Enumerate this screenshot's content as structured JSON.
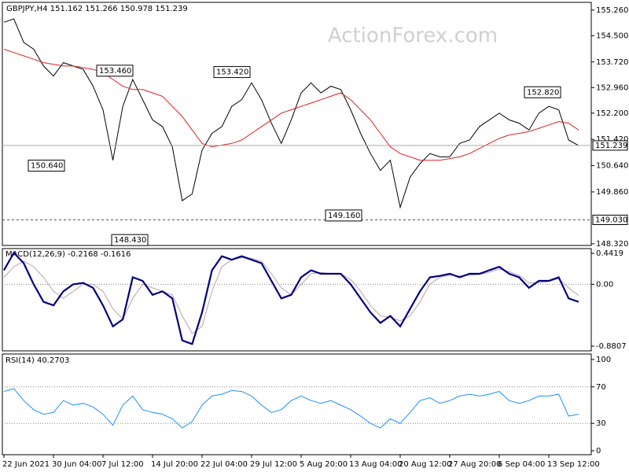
{
  "chart_data": [
    {
      "type": "line",
      "title": "GBPJPY,H4  151.162 151.266 150.978 151.239",
      "watermark": "ActionForex.com",
      "ylim": [
        148.27,
        155.49
      ],
      "yticks": [
        {
          "value": 155.26,
          "label": "155.260"
        },
        {
          "value": 154.5,
          "label": "154.500"
        },
        {
          "value": 153.72,
          "label": "153.720"
        },
        {
          "value": 152.96,
          "label": "152.960"
        },
        {
          "value": 152.2,
          "label": "152.200"
        },
        {
          "value": 151.42,
          "label": "151.420"
        },
        {
          "value": 150.64,
          "label": "150.640"
        },
        {
          "value": 149.86,
          "label": "149.860"
        },
        {
          "value": 148.32,
          "label": "148.320"
        }
      ],
      "series": [
        {
          "name": "Price",
          "color": "#000000",
          "width": 1,
          "values": [
            154.9,
            155.0,
            154.3,
            154.1,
            153.6,
            153.3,
            153.7,
            153.6,
            153.5,
            153.0,
            152.3,
            150.8,
            152.4,
            153.2,
            152.6,
            152.0,
            151.8,
            151.2,
            149.6,
            149.8,
            151.1,
            151.6,
            151.8,
            152.4,
            152.6,
            153.1,
            152.6,
            151.9,
            151.3,
            152.0,
            152.8,
            153.1,
            152.8,
            153.0,
            152.9,
            152.3,
            151.6,
            151.0,
            150.5,
            150.8,
            149.4,
            150.3,
            150.7,
            151.0,
            150.9,
            150.9,
            151.3,
            151.4,
            151.8,
            152.0,
            152.2,
            152.0,
            151.9,
            151.7,
            152.2,
            152.4,
            152.3,
            151.4,
            151.239
          ]
        },
        {
          "name": "MA",
          "color": "#e02020",
          "width": 1,
          "values": [
            154.1,
            154.0,
            153.9,
            153.8,
            153.7,
            153.65,
            153.6,
            153.6,
            153.55,
            153.5,
            153.4,
            153.2,
            153.0,
            152.9,
            152.9,
            152.8,
            152.7,
            152.4,
            152.1,
            151.7,
            151.3,
            151.2,
            151.25,
            151.3,
            151.4,
            151.6,
            151.8,
            152.0,
            152.2,
            152.3,
            152.4,
            152.5,
            152.6,
            152.7,
            152.8,
            152.6,
            152.3,
            152.0,
            151.6,
            151.2,
            151.0,
            150.9,
            150.8,
            150.8,
            150.8,
            150.85,
            150.9,
            151.0,
            151.15,
            151.3,
            151.45,
            151.55,
            151.6,
            151.65,
            151.75,
            151.85,
            151.95,
            151.9,
            151.7
          ]
        }
      ],
      "annotations": [
        {
          "value": 153.46,
          "label": "153.460"
        },
        {
          "value": 150.64,
          "label": "150.640"
        },
        {
          "value": 153.42,
          "label": "153.420"
        },
        {
          "value": 148.43,
          "label": "148.430"
        },
        {
          "value": 149.16,
          "label": "149.160"
        },
        {
          "value": 152.82,
          "label": "152.820"
        }
      ],
      "price_levels": [
        {
          "value": 149.03,
          "label": "149.030",
          "dashed": true
        },
        {
          "value": 151.239,
          "label": "151.239",
          "dashed": false
        }
      ]
    },
    {
      "type": "line",
      "title": "MACD(12,26,9) -0.2168 -0.1616",
      "ylim": [
        -0.948,
        0.509
      ],
      "yticks": [
        0.4419,
        {
          "value": 0,
          "label": "0.00"
        },
        -0.8807
      ],
      "levels": [
        0
      ],
      "series": [
        {
          "name": "Signal",
          "color": "#b8a4ac",
          "width": 1,
          "values": [
            0.1,
            0.25,
            0.33,
            0.25,
            0.1,
            -0.1,
            -0.2,
            -0.1,
            0.0,
            0.0,
            -0.1,
            -0.35,
            -0.5,
            -0.2,
            0.0,
            -0.05,
            -0.1,
            -0.15,
            -0.45,
            -0.7,
            -0.6,
            -0.1,
            0.25,
            0.35,
            0.38,
            0.37,
            0.33,
            0.15,
            -0.05,
            -0.15,
            0.0,
            0.15,
            0.17,
            0.15,
            0.15,
            0.07,
            -0.1,
            -0.3,
            -0.45,
            -0.47,
            -0.52,
            -0.45,
            -0.25,
            0.0,
            0.1,
            0.13,
            0.12,
            0.13,
            0.14,
            0.17,
            0.22,
            0.18,
            0.13,
            0.02,
            0.02,
            0.04,
            0.08,
            -0.05,
            -0.16
          ]
        },
        {
          "name": "MACD",
          "color": "#000080",
          "width": 2.2,
          "values": [
            0.2,
            0.45,
            0.3,
            0.0,
            -0.25,
            -0.3,
            -0.1,
            0.0,
            0.02,
            -0.05,
            -0.3,
            -0.6,
            -0.5,
            0.1,
            0.05,
            -0.15,
            -0.1,
            -0.2,
            -0.8,
            -0.85,
            -0.4,
            0.2,
            0.4,
            0.35,
            0.4,
            0.35,
            0.3,
            0.05,
            -0.2,
            -0.15,
            0.1,
            0.2,
            0.15,
            0.15,
            0.15,
            0.0,
            -0.2,
            -0.4,
            -0.55,
            -0.45,
            -0.6,
            -0.35,
            -0.1,
            0.1,
            0.12,
            0.15,
            0.1,
            0.15,
            0.15,
            0.2,
            0.25,
            0.15,
            0.1,
            -0.05,
            0.05,
            0.05,
            0.1,
            -0.2,
            -0.25
          ]
        }
      ]
    },
    {
      "type": "line",
      "title": "RSI(14) 40.2703",
      "ylim": [
        -4.3,
        106
      ],
      "yticks": [
        100,
        70,
        30,
        0
      ],
      "levels": [
        70,
        30
      ],
      "series": [
        {
          "name": "RSI",
          "color": "#1e90ff",
          "width": 1,
          "values": [
            65,
            68,
            55,
            45,
            40,
            42,
            55,
            50,
            52,
            48,
            40,
            28,
            50,
            60,
            45,
            42,
            40,
            35,
            25,
            32,
            50,
            60,
            62,
            66,
            65,
            60,
            50,
            42,
            45,
            55,
            60,
            55,
            52,
            55,
            50,
            45,
            38,
            30,
            25,
            35,
            30,
            42,
            55,
            58,
            52,
            55,
            60,
            62,
            60,
            62,
            65,
            55,
            52,
            55,
            60,
            60,
            62,
            38,
            40
          ]
        }
      ],
      "categories": [
        "22 Jun 2021",
        null,
        null,
        null,
        null,
        "30 Jun 04:00",
        null,
        null,
        null,
        null,
        "7 Jul 12:00",
        null,
        null,
        null,
        null,
        "14 Jul 20:00",
        null,
        null,
        null,
        null,
        "22 Jul 04:00",
        null,
        null,
        null,
        null,
        "29 Jul 12:00",
        null,
        null,
        null,
        null,
        "5 Aug 20:00",
        null,
        null,
        null,
        null,
        "13 Aug 04:00",
        null,
        null,
        null,
        null,
        "20 Aug 12:00",
        null,
        null,
        null,
        null,
        "27 Aug 20:00",
        null,
        null,
        null,
        null,
        "6 Sep 04:00",
        null,
        null,
        null,
        null,
        "13 Sep 12:00",
        null,
        null,
        null
      ]
    }
  ]
}
